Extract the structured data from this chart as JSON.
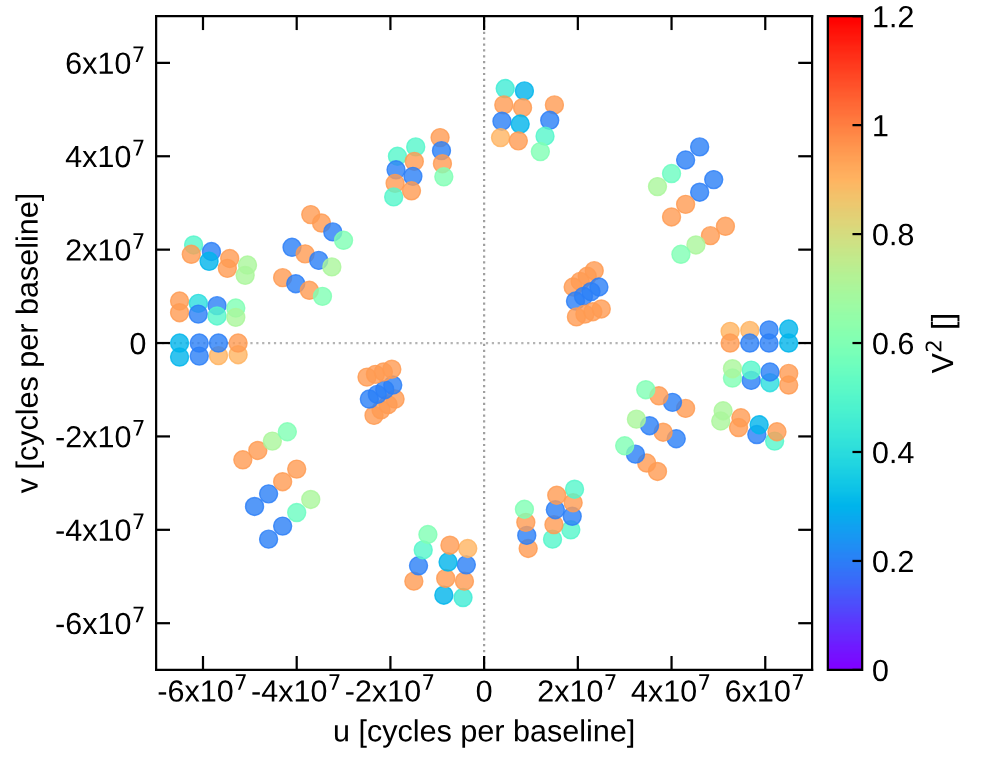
{
  "chart_data": {
    "type": "scatter",
    "xlabel": "u [cycles per baseline]",
    "ylabel": "v [cycles per baseline]",
    "clabel": "V$^{2}$ []",
    "xlim": [
      -70000000.0,
      70000000.0
    ],
    "ylim": [
      -70000000.0,
      70000000.0
    ],
    "xticks": [
      {
        "value": -60000000.0,
        "label": "-6x10$^{7}$"
      },
      {
        "value": -40000000.0,
        "label": "-4x10$^{7}$"
      },
      {
        "value": -20000000.0,
        "label": "-2x10$^{7}$"
      },
      0,
      {
        "value": 20000000.0,
        "label": "2x10$^{7}$"
      },
      {
        "value": 40000000.0,
        "label": "4x10$^{7}$"
      },
      {
        "value": 60000000.0,
        "label": "6x10$^{7}$"
      }
    ],
    "yticks": [
      {
        "value": -60000000.0,
        "label": "-6x10$^{7}$"
      },
      {
        "value": -40000000.0,
        "label": "-4x10$^{7}$"
      },
      {
        "value": -20000000.0,
        "label": "-2x10$^{7}$"
      },
      0,
      {
        "value": 20000000.0,
        "label": "2x10$^{7}$"
      },
      {
        "value": 40000000.0,
        "label": "4x10$^{7}$"
      },
      {
        "value": 60000000.0,
        "label": "6x10$^{7}$"
      }
    ],
    "clim": [
      0,
      1.2
    ],
    "cticks": [
      0,
      0.2,
      0.4,
      0.6,
      0.8,
      1,
      1.2
    ],
    "marker": "circle",
    "ref_lines": [
      {
        "axis": "x",
        "value": 0,
        "color": "#a0a0a0",
        "line_style": "dotted"
      },
      {
        "axis": "y",
        "value": 0,
        "color": "#b4b4b4",
        "line_style": "dotted"
      }
    ],
    "series": [
      {
        "x": [
          4500000.0,
          4200000.0,
          3800000.0,
          3500000.0,
          8600000.0,
          8200000.0,
          7700000.0,
          7300000.0,
          15000000.0,
          14000000.0,
          13000000.0,
          12000000.0,
          46000000.0,
          43000000.0,
          40000000.0,
          37000000.0,
          49000000.0,
          46000000.0,
          43000000.0,
          40000000.0,
          51500000.0,
          48300000.0,
          45200000.0,
          42000000.0,
          23500000.0,
          22000000.0,
          20500000.0,
          19000000.0,
          24500000.0,
          22800000.0,
          21200000.0,
          19500000.0,
          25000000.0,
          23200000.0,
          21500000.0,
          19700000.0,
          52500000.0,
          56700000.0,
          60800000.0,
          65000000.0,
          52500000.0,
          56700000.0,
          60800000.0,
          65000000.0,
          -65000000.0,
          -61000000.0,
          -57000000.0,
          -53000000.0,
          -65000000.0,
          -61000000.0,
          -57000000.0,
          -53000000.0,
          -62000000.0,
          -58200000.0,
          -54300000.0,
          -50500000.0,
          -62500000.0,
          -58700000.0,
          -54800000.0,
          -51000000.0,
          -37000000.0,
          -34700000.0,
          -32300000.0,
          -30000000.0,
          -41000000.0,
          -38200000.0,
          -35300000.0,
          -32500000.0,
          -43000000.0,
          -40200000.0,
          -37300000.0,
          -34500000.0,
          -18500000.0,
          -18800000.0,
          -19000000.0,
          -19300000.0,
          -14600000.0,
          -14900000.0,
          -15200000.0,
          -15500000.0,
          -9400000.0,
          -9100000.0,
          -8900000.0,
          -8600000.0
        ],
        "values": [
          54500000.0,
          51000000.0,
          47500000.0,
          44000000.0,
          54000000.0,
          50400000.0,
          46900000.0,
          43300000.0,
          51000000.0,
          47700000.0,
          44300000.0,
          41000000.0,
          42000000.0,
          39200000.0,
          36300000.0,
          33500000.0,
          35000000.0,
          32300000.0,
          29700000.0,
          27000000.0,
          25000000.0,
          23000000.0,
          21000000.0,
          19000000.0,
          15500000.0,
          14300000.0,
          13200000.0,
          12000000.0,
          12000000.0,
          11000000.0,
          10000000.0,
          9000000.0,
          7300000.0,
          6700000.0,
          6200000.0,
          5600000.0,
          2500000.0,
          2700000.0,
          2800000.0,
          3000000.0,
          0,
          0,
          0,
          0,
          9000000.0,
          8500000.0,
          8000000.0,
          7500000.0,
          6500000.0,
          6200000.0,
          5800000.0,
          5500000.0,
          21000000.0,
          19600000.0,
          18100000.0,
          16700000.0,
          19000000.0,
          17500000.0,
          16000000.0,
          14500000.0,
          27500000.0,
          25700000.0,
          23800000.0,
          22000000.0,
          20500000.0,
          19100000.0,
          17700000.0,
          16300000.0,
          14000000.0,
          12700000.0,
          11300000.0,
          10000000.0,
          40000000.0,
          37100000.0,
          34200000.0,
          31300000.0,
          42000000.0,
          38900000.0,
          35700000.0,
          32600000.0,
          44000000.0,
          41200000.0,
          38400000.0,
          35600000.0
        ],
        "cvalues": [
          0.45,
          0.95,
          0.2,
          0.9,
          0.3,
          0.95,
          0.3,
          0.95,
          0.95,
          0.2,
          0.5,
          0.6,
          0.2,
          0.2,
          0.55,
          0.7,
          0.2,
          0.2,
          0.95,
          0.95,
          0.95,
          0.95,
          0.7,
          0.6,
          0.95,
          0.95,
          0.95,
          0.95,
          0.2,
          0.2,
          0.2,
          0.2,
          0.95,
          0.95,
          0.95,
          0.95,
          0.9,
          0.9,
          0.2,
          0.3,
          0.95,
          0.2,
          0.2,
          0.3,
          0.95,
          0.4,
          0.2,
          0.6,
          0.95,
          0.2,
          0.5,
          0.7,
          0.5,
          0.2,
          0.95,
          0.7,
          0.95,
          0.3,
          0.95,
          0.7,
          0.95,
          0.95,
          0.2,
          0.6,
          0.2,
          0.95,
          0.2,
          0.7,
          0.95,
          0.2,
          0.95,
          0.6,
          0.5,
          0.2,
          0.95,
          0.5,
          0.5,
          0.95,
          0.2,
          0.95,
          0.95,
          0.2,
          0.95,
          0.6
        ],
        "colors": [
          "#40ebd4",
          "#ff9b52",
          "#2a7ff6",
          "#ffb462",
          "#00b4eb",
          "#ff9b52",
          "#00b4eb",
          "#ff9b52",
          "#ff9b52",
          "#2a7ff6",
          "#55f6ca",
          "#80ffb4",
          "#2a7ff6",
          "#2a7ff6",
          "#6afdc0",
          "#aaf69b",
          "#2a7ff6",
          "#2a7ff6",
          "#ff9b52",
          "#ff9b52",
          "#ff9b52",
          "#ff9b52",
          "#aaf69b",
          "#80ffb4",
          "#ff9b52",
          "#ff9b52",
          "#ff9b52",
          "#ff9b52",
          "#2a7ff6",
          "#2a7ff6",
          "#2a7ff6",
          "#2a7ff6",
          "#ff9b52",
          "#ff9b52",
          "#ff9b52",
          "#ff9b52",
          "#ffb462",
          "#ffb462",
          "#2a7ff6",
          "#00b4eb",
          "#ff9b52",
          "#2a7ff6",
          "#2a7ff6",
          "#00b4eb",
          "#ff9b52",
          "#2addde",
          "#2a7ff6",
          "#80ffb4",
          "#ff9b52",
          "#2a7ff6",
          "#55f6ca",
          "#aaf69b",
          "#55f6ca",
          "#2a7ff6",
          "#ff9b52",
          "#aaf69b",
          "#ff9b52",
          "#00b4eb",
          "#ff9b52",
          "#aaf69b",
          "#ff9b52",
          "#ff9b52",
          "#2a7ff6",
          "#80ffb4",
          "#2a7ff6",
          "#ff9b52",
          "#2a7ff6",
          "#aaf69b",
          "#ff9b52",
          "#2a7ff6",
          "#ff9b52",
          "#80ffb4",
          "#55f6ca",
          "#2a7ff6",
          "#ff9b52",
          "#55f6ca",
          "#55f6ca",
          "#ff9b52",
          "#2a7ff6",
          "#ff9b52",
          "#ff9b52",
          "#2a7ff6",
          "#ff9b52",
          "#80ffb4"
        ]
      },
      {
        "x": [
          -4500000.0,
          -4200000.0,
          -3800000.0,
          -3500000.0,
          -8600000.0,
          -8200000.0,
          -7700000.0,
          -7300000.0,
          -15000000.0,
          -14000000.0,
          -13000000.0,
          -12000000.0,
          -46000000.0,
          -43000000.0,
          -40000000.0,
          -37000000.0,
          -49000000.0,
          -46000000.0,
          -43000000.0,
          -40000000.0,
          -51500000.0,
          -48300000.0,
          -45200000.0,
          -42000000.0,
          -23500000.0,
          -22000000.0,
          -20500000.0,
          -19000000.0,
          -24500000.0,
          -22800000.0,
          -21200000.0,
          -19500000.0,
          -25000000.0,
          -23200000.0,
          -21500000.0,
          -19700000.0,
          -52500000.0,
          -56700000.0,
          -60800000.0,
          -65000000.0,
          -52500000.0,
          -56700000.0,
          -60800000.0,
          -65000000.0,
          65000000.0,
          61000000.0,
          57000000.0,
          53000000.0,
          65000000.0,
          61000000.0,
          57000000.0,
          53000000.0,
          62000000.0,
          58200000.0,
          54300000.0,
          50500000.0,
          62500000.0,
          58700000.0,
          54800000.0,
          51000000.0,
          37000000.0,
          34700000.0,
          32300000.0,
          30000000.0,
          41000000.0,
          38200000.0,
          35300000.0,
          32500000.0,
          43000000.0,
          40200000.0,
          37300000.0,
          34500000.0,
          18500000.0,
          18800000.0,
          19000000.0,
          19300000.0,
          14600000.0,
          14900000.0,
          15200000.0,
          15500000.0,
          9400000.0,
          9100000.0,
          8900000.0,
          8600000.0
        ],
        "values": [
          -54500000.0,
          -51000000.0,
          -47500000.0,
          -44000000.0,
          -54000000.0,
          -50400000.0,
          -46900000.0,
          -43300000.0,
          -51000000.0,
          -47700000.0,
          -44300000.0,
          -41000000.0,
          -42000000.0,
          -39200000.0,
          -36300000.0,
          -33500000.0,
          -35000000.0,
          -32300000.0,
          -29700000.0,
          -27000000.0,
          -25000000.0,
          -23000000.0,
          -21000000.0,
          -19000000.0,
          -15500000.0,
          -14300000.0,
          -13200000.0,
          -12000000.0,
          -12000000.0,
          -11000000.0,
          -10000000.0,
          -9000000.0,
          -7300000.0,
          -6700000.0,
          -6200000.0,
          -5600000.0,
          -2500000.0,
          -2700000.0,
          -2800000.0,
          -3000000.0,
          0,
          0,
          0,
          0,
          -9000000.0,
          -8500000.0,
          -8000000.0,
          -7500000.0,
          -6500000.0,
          -6200000.0,
          -5800000.0,
          -5500000.0,
          -21000000.0,
          -19600000.0,
          -18100000.0,
          -16700000.0,
          -19000000.0,
          -17500000.0,
          -16000000.0,
          -14500000.0,
          -27500000.0,
          -25700000.0,
          -23800000.0,
          -22000000.0,
          -20500000.0,
          -19100000.0,
          -17700000.0,
          -16300000.0,
          -14000000.0,
          -12700000.0,
          -11300000.0,
          -10000000.0,
          -40000000.0,
          -37100000.0,
          -34200000.0,
          -31300000.0,
          -42000000.0,
          -38900000.0,
          -35700000.0,
          -32600000.0,
          -44000000.0,
          -41200000.0,
          -38400000.0,
          -35600000.0
        ],
        "cvalues": [
          0.45,
          0.95,
          0.2,
          0.9,
          0.3,
          0.95,
          0.3,
          0.95,
          0.95,
          0.2,
          0.5,
          0.6,
          0.2,
          0.2,
          0.55,
          0.7,
          0.2,
          0.2,
          0.95,
          0.95,
          0.95,
          0.95,
          0.7,
          0.6,
          0.95,
          0.95,
          0.95,
          0.95,
          0.2,
          0.2,
          0.2,
          0.2,
          0.95,
          0.95,
          0.95,
          0.95,
          0.9,
          0.9,
          0.2,
          0.3,
          0.95,
          0.2,
          0.2,
          0.3,
          0.95,
          0.4,
          0.2,
          0.6,
          0.95,
          0.2,
          0.5,
          0.7,
          0.5,
          0.2,
          0.95,
          0.7,
          0.95,
          0.3,
          0.95,
          0.7,
          0.95,
          0.95,
          0.2,
          0.6,
          0.2,
          0.95,
          0.2,
          0.7,
          0.95,
          0.2,
          0.95,
          0.6,
          0.5,
          0.2,
          0.95,
          0.5,
          0.5,
          0.95,
          0.2,
          0.95,
          0.95,
          0.2,
          0.95,
          0.6
        ],
        "colors": [
          "#40ebd4",
          "#ff9b52",
          "#2a7ff6",
          "#ffb462",
          "#00b4eb",
          "#ff9b52",
          "#00b4eb",
          "#ff9b52",
          "#ff9b52",
          "#2a7ff6",
          "#55f6ca",
          "#80ffb4",
          "#2a7ff6",
          "#2a7ff6",
          "#6afdc0",
          "#aaf69b",
          "#2a7ff6",
          "#2a7ff6",
          "#ff9b52",
          "#ff9b52",
          "#ff9b52",
          "#ff9b52",
          "#aaf69b",
          "#80ffb4",
          "#ff9b52",
          "#ff9b52",
          "#ff9b52",
          "#ff9b52",
          "#2a7ff6",
          "#2a7ff6",
          "#2a7ff6",
          "#2a7ff6",
          "#ff9b52",
          "#ff9b52",
          "#ff9b52",
          "#ff9b52",
          "#ffb462",
          "#ffb462",
          "#2a7ff6",
          "#00b4eb",
          "#ff9b52",
          "#2a7ff6",
          "#2a7ff6",
          "#00b4eb",
          "#ff9b52",
          "#2addde",
          "#2a7ff6",
          "#80ffb4",
          "#ff9b52",
          "#2a7ff6",
          "#55f6ca",
          "#aaf69b",
          "#55f6ca",
          "#2a7ff6",
          "#ff9b52",
          "#aaf69b",
          "#ff9b52",
          "#00b4eb",
          "#ff9b52",
          "#aaf69b",
          "#ff9b52",
          "#ff9b52",
          "#2a7ff6",
          "#80ffb4",
          "#2a7ff6",
          "#ff9b52",
          "#2a7ff6",
          "#aaf69b",
          "#ff9b52",
          "#2a7ff6",
          "#ff9b52",
          "#80ffb4",
          "#55f6ca",
          "#2a7ff6",
          "#ff9b52",
          "#55f6ca",
          "#55f6ca",
          "#ff9b52",
          "#2a7ff6",
          "#ff9b52",
          "#ff9b52",
          "#2a7ff6",
          "#ff9b52",
          "#80ffb4"
        ]
      }
    ]
  }
}
